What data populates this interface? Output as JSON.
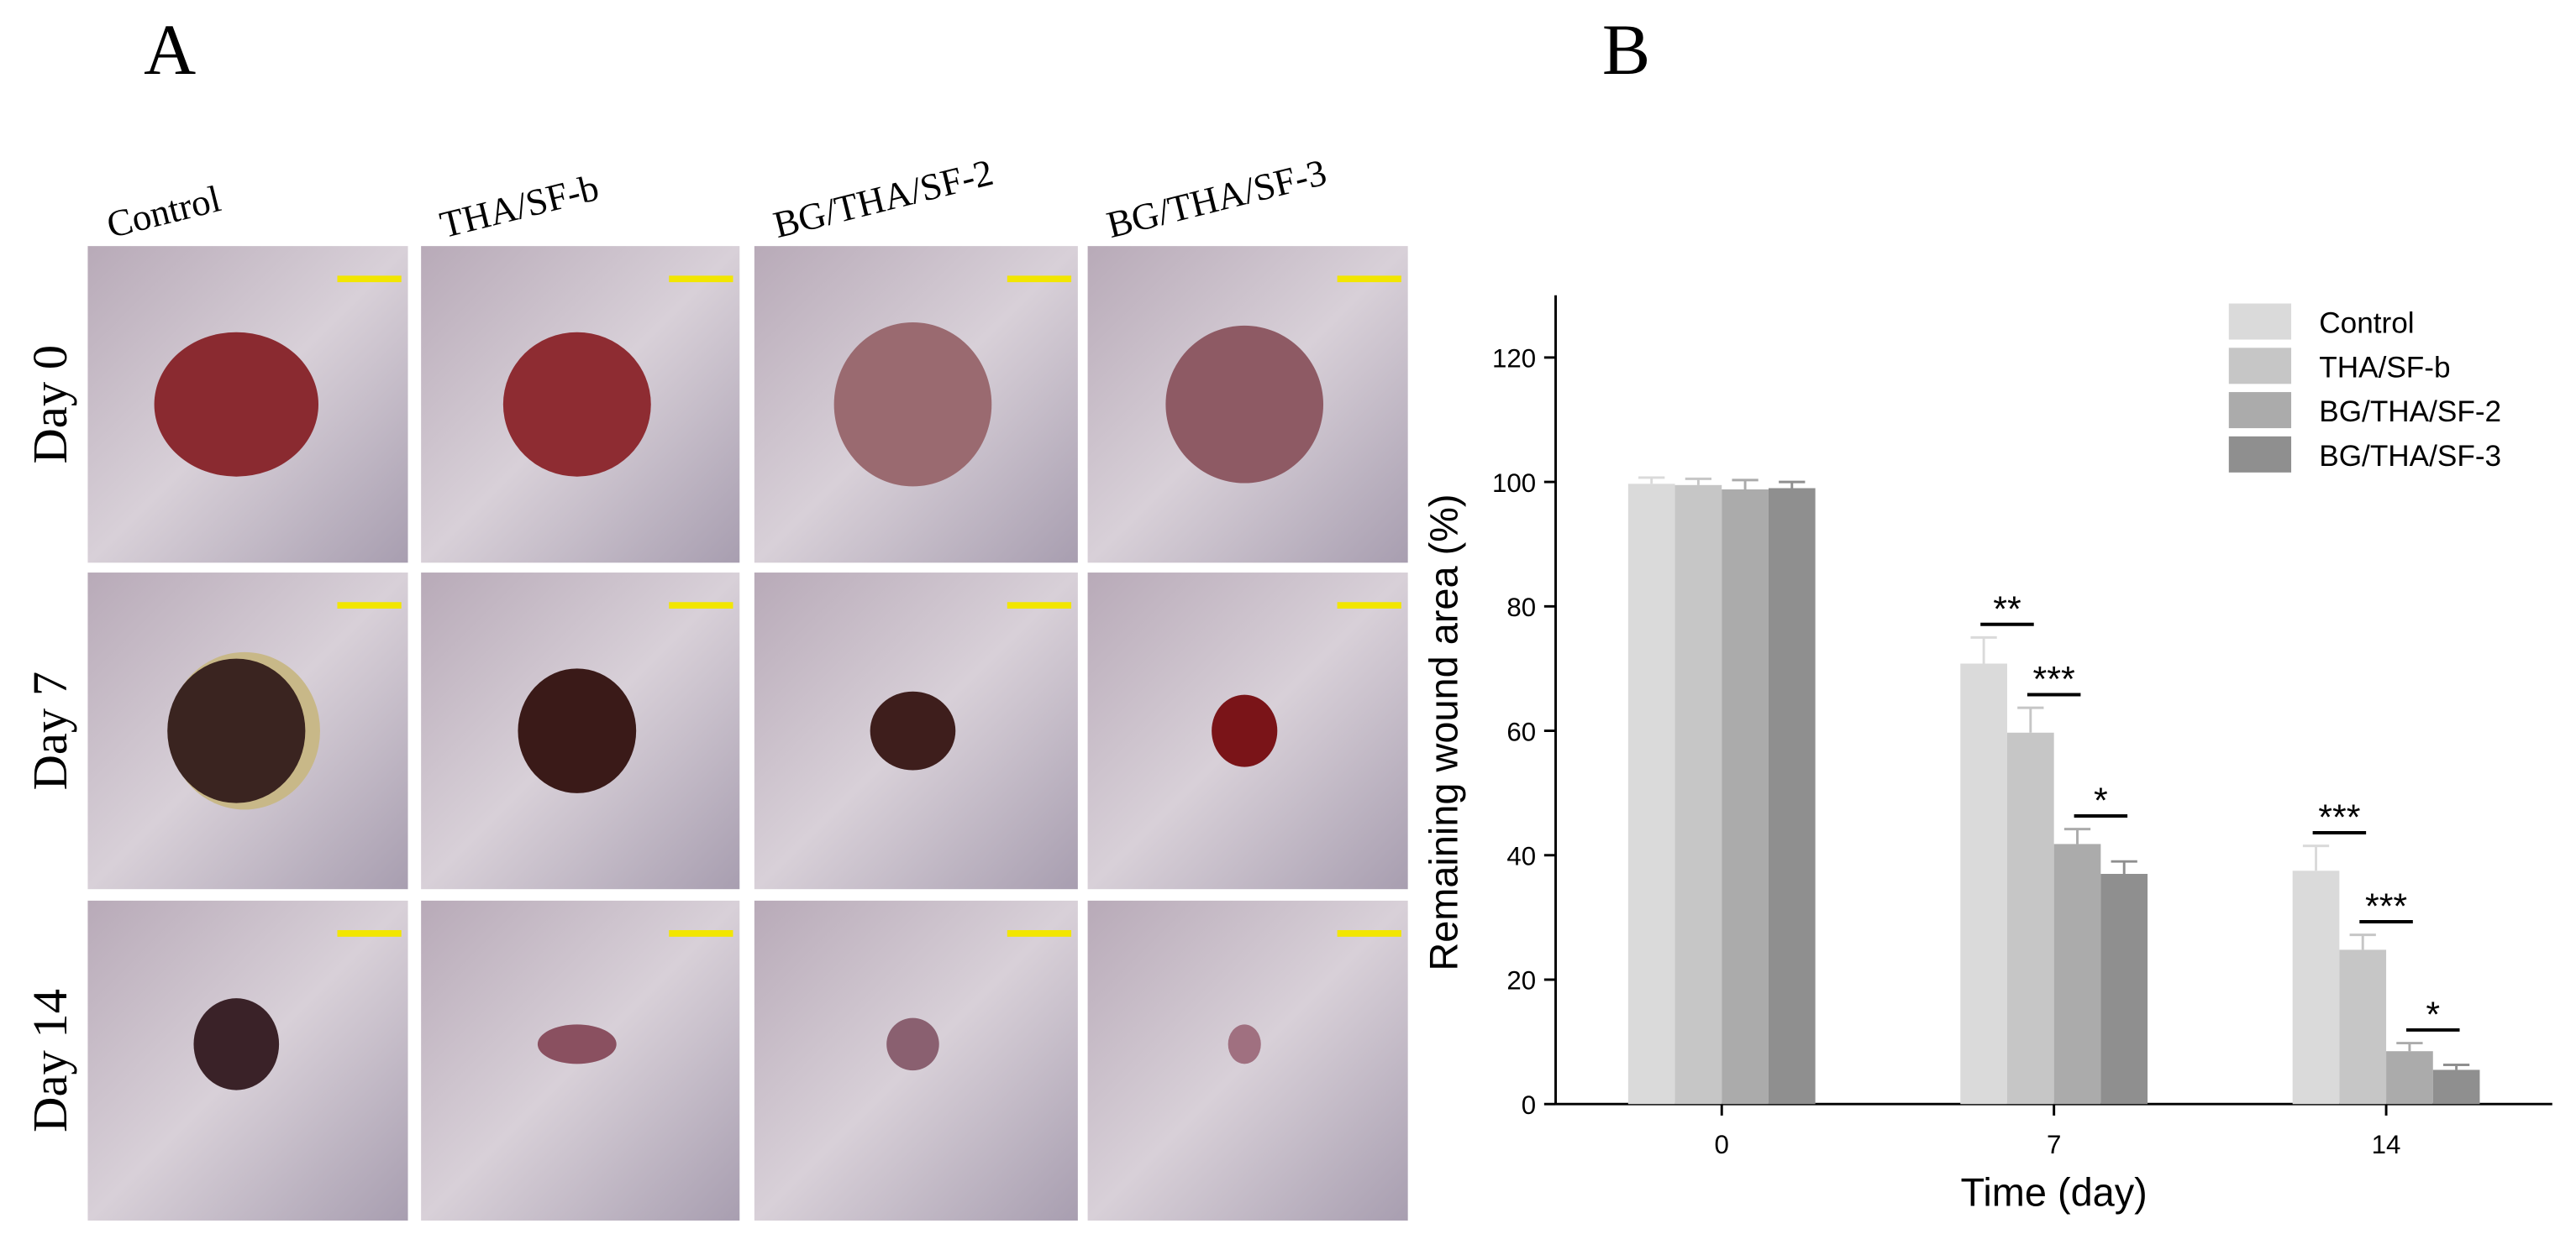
{
  "panel_a": {
    "label": "A",
    "columns": [
      "Control",
      "THA/SF-b",
      "BG/THA/SF-2",
      "BG/THA/SF-3"
    ],
    "rows": [
      "Day 0",
      "Day 7",
      "Day 14"
    ]
  },
  "chart_data": {
    "type": "bar",
    "panel_label": "B",
    "x_label": "Time (day)",
    "y_label": "Remaining wound area (%)",
    "categories": [
      "0",
      "7",
      "14"
    ],
    "series": [
      {
        "name": "Control",
        "color": "#dadada",
        "values": [
          99.7,
          70.8,
          37.5
        ],
        "errors": [
          1.0,
          4.2,
          4.0
        ]
      },
      {
        "name": "THA/SF-b",
        "color": "#c6c6c6",
        "values": [
          99.5,
          59.7,
          24.8
        ],
        "errors": [
          1.0,
          4.0,
          2.4
        ]
      },
      {
        "name": "BG/THA/SF-2",
        "color": "#ababab",
        "values": [
          98.8,
          41.8,
          8.5
        ],
        "errors": [
          1.5,
          2.4,
          1.3
        ]
      },
      {
        "name": "BG/THA/SF-3",
        "color": "#8f8f8f",
        "values": [
          99.0,
          37.0,
          5.5
        ],
        "errors": [
          1.0,
          2.0,
          0.8
        ]
      }
    ],
    "annotations": [
      "**",
      "***",
      "*",
      "***",
      "***",
      "*"
    ],
    "ylim": [
      0,
      130
    ],
    "yticks": [
      0,
      20,
      40,
      60,
      80,
      100,
      120
    ],
    "grid": false,
    "legend": "top-right"
  }
}
